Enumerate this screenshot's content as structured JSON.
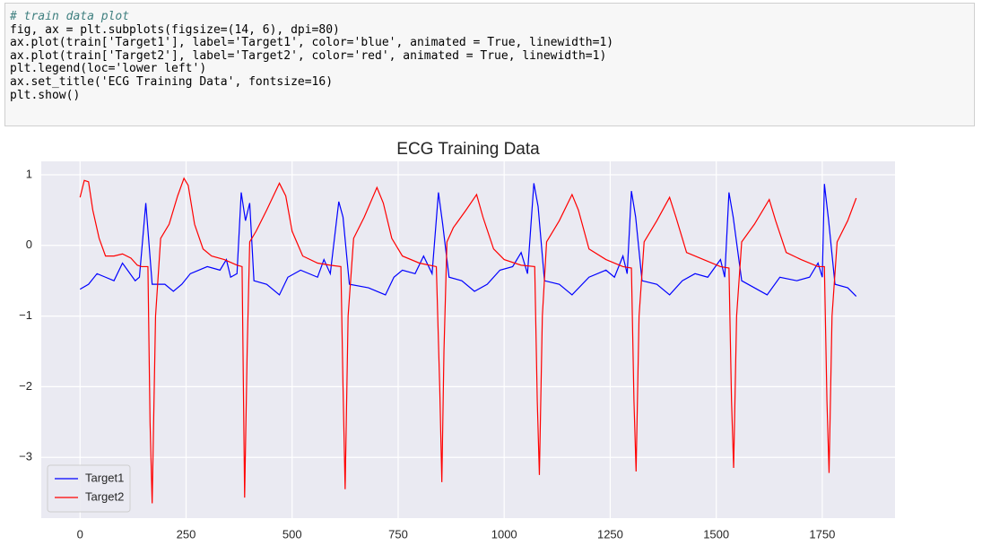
{
  "code": [
    "# train data plot",
    "fig, ax = plt.subplots(figsize=(14, 6), dpi=80)",
    "ax.plot(train['Target1'], label='Target1', color='blue', animated = True, linewidth=1)",
    "ax.plot(train['Target2'], label='Target2', color='red', animated = True, linewidth=1)",
    "plt.legend(loc='lower left')",
    "ax.set_title('ECG Training Data', fontsize=16)",
    "plt.show()"
  ],
  "chart_data": {
    "type": "line",
    "title": "ECG Training Data",
    "grid": true,
    "legend": "lower left",
    "xlim": [
      -91.5,
      1921.5
    ],
    "ylim": [
      -3.86,
      1.19
    ],
    "xticks": [
      0,
      250,
      500,
      750,
      1000,
      1250,
      1500,
      1750
    ],
    "yticks": [
      {
        "value": -3,
        "label": "−3"
      },
      {
        "value": -2,
        "label": "−2"
      },
      {
        "value": -1,
        "label": "−1"
      },
      0,
      1
    ],
    "series": [
      {
        "name": "Target1",
        "color": "#0000ff",
        "x": [
          0,
          20,
          40,
          60,
          80,
          100,
          130,
          140,
          155,
          170,
          200,
          220,
          240,
          260,
          300,
          330,
          345,
          355,
          370,
          380,
          390,
          400,
          410,
          440,
          470,
          490,
          520,
          560,
          575,
          590,
          610,
          620,
          635,
          680,
          720,
          740,
          760,
          790,
          810,
          830,
          845,
          855,
          870,
          900,
          930,
          960,
          990,
          1020,
          1040,
          1055,
          1070,
          1080,
          1095,
          1130,
          1160,
          1200,
          1240,
          1260,
          1280,
          1290,
          1300,
          1310,
          1325,
          1360,
          1390,
          1420,
          1450,
          1480,
          1510,
          1520,
          1530,
          1540,
          1560,
          1590,
          1620,
          1650,
          1690,
          1720,
          1740,
          1750,
          1755,
          1765,
          1780,
          1810,
          1830
        ],
        "values": [
          -0.62,
          -0.55,
          -0.4,
          -0.45,
          -0.5,
          -0.25,
          -0.5,
          -0.45,
          0.6,
          -0.55,
          -0.55,
          -0.65,
          -0.55,
          -0.4,
          -0.3,
          -0.35,
          -0.2,
          -0.45,
          -0.4,
          0.75,
          0.35,
          0.6,
          -0.5,
          -0.55,
          -0.7,
          -0.45,
          -0.35,
          -0.45,
          -0.2,
          -0.4,
          0.62,
          0.4,
          -0.55,
          -0.6,
          -0.7,
          -0.45,
          -0.35,
          -0.4,
          -0.15,
          -0.4,
          0.75,
          0.3,
          -0.45,
          -0.5,
          -0.65,
          -0.55,
          -0.35,
          -0.3,
          -0.1,
          -0.4,
          0.88,
          0.55,
          -0.5,
          -0.55,
          -0.7,
          -0.45,
          -0.35,
          -0.45,
          -0.15,
          -0.4,
          0.77,
          0.4,
          -0.5,
          -0.55,
          -0.7,
          -0.5,
          -0.4,
          -0.45,
          -0.2,
          -0.45,
          0.75,
          0.4,
          -0.5,
          -0.6,
          -0.7,
          -0.45,
          -0.5,
          -0.45,
          -0.25,
          -0.45,
          0.87,
          0.35,
          -0.55,
          -0.6,
          -0.72
        ]
      },
      {
        "name": "Target2",
        "color": "#ff0000",
        "x": [
          0,
          10,
          20,
          30,
          45,
          60,
          80,
          100,
          120,
          135,
          145,
          160,
          165,
          170,
          178,
          190,
          210,
          230,
          245,
          255,
          270,
          290,
          310,
          340,
          370,
          382,
          388,
          394,
          400,
          415,
          440,
          470,
          485,
          500,
          525,
          560,
          590,
          615,
          620,
          625,
          632,
          645,
          670,
          700,
          715,
          735,
          760,
          800,
          840,
          848,
          853,
          858,
          865,
          880,
          910,
          935,
          950,
          975,
          1000,
          1040,
          1072,
          1078,
          1083,
          1090,
          1100,
          1130,
          1160,
          1175,
          1200,
          1240,
          1280,
          1300,
          1306,
          1311,
          1318,
          1330,
          1360,
          1390,
          1405,
          1430,
          1470,
          1510,
          1530,
          1536,
          1541,
          1548,
          1560,
          1590,
          1625,
          1640,
          1665,
          1700,
          1740,
          1755,
          1761,
          1766,
          1773,
          1785,
          1810,
          1830
        ],
        "values": [
          0.68,
          0.92,
          0.9,
          0.5,
          0.1,
          -0.15,
          -0.15,
          -0.12,
          -0.18,
          -0.28,
          -0.3,
          -0.3,
          -2.5,
          -3.65,
          -1.0,
          0.1,
          0.3,
          0.7,
          0.95,
          0.85,
          0.3,
          -0.05,
          -0.15,
          -0.2,
          -0.28,
          -0.3,
          -3.57,
          -1.5,
          0.05,
          0.2,
          0.5,
          0.88,
          0.7,
          0.2,
          -0.15,
          -0.25,
          -0.28,
          -0.3,
          -2.0,
          -3.45,
          -1.0,
          0.1,
          0.4,
          0.82,
          0.6,
          0.1,
          -0.15,
          -0.25,
          -0.3,
          -2.0,
          -3.35,
          -1.5,
          0.05,
          0.25,
          0.5,
          0.72,
          0.4,
          -0.05,
          -0.2,
          -0.28,
          -0.3,
          -2.2,
          -3.25,
          -1.0,
          0.05,
          0.35,
          0.72,
          0.5,
          -0.05,
          -0.2,
          -0.3,
          -0.32,
          -2.2,
          -3.2,
          -1.0,
          0.05,
          0.35,
          0.68,
          0.4,
          -0.1,
          -0.2,
          -0.3,
          -0.32,
          -2.2,
          -3.15,
          -1.0,
          0.05,
          0.3,
          0.65,
          0.35,
          -0.1,
          -0.2,
          -0.3,
          -0.3,
          -2.2,
          -3.22,
          -1.0,
          0.05,
          0.35,
          0.67
        ]
      }
    ]
  }
}
